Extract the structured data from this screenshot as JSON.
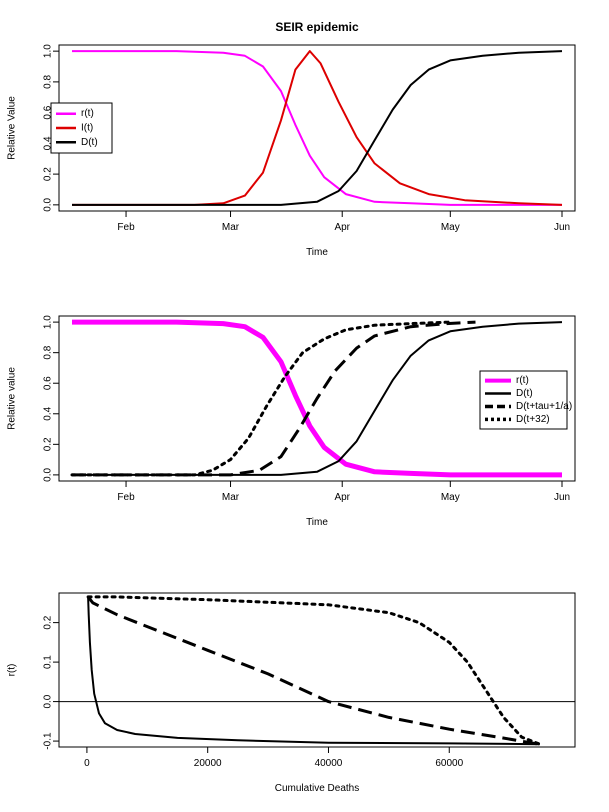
{
  "figure": {
    "title": "SEIR epidemic"
  },
  "chart_data": [
    {
      "type": "line",
      "title": "SEIR epidemic",
      "xlabel": "Time",
      "ylabel": "Relative Value",
      "x_ticks": [
        "Feb",
        "Mar",
        "Apr",
        "May",
        "Jun"
      ],
      "y_ticks": [
        "0.0",
        "0.2",
        "0.4",
        "0.6",
        "0.8",
        "1.0"
      ],
      "ylim": [
        0,
        1
      ],
      "grid": false,
      "legend": "left",
      "x_unit": "date",
      "xlim": [
        "2020-01-17",
        "2020-06-01"
      ],
      "series": [
        {
          "name": "r(t)",
          "color": "#ff00ff",
          "style": "solid",
          "x": [
            "2020-01-17",
            "2020-02-15",
            "2020-02-28",
            "2020-03-05",
            "2020-03-10",
            "2020-03-15",
            "2020-03-19",
            "2020-03-23",
            "2020-03-27",
            "2020-04-02",
            "2020-04-10",
            "2020-04-20",
            "2020-05-01",
            "2020-06-01"
          ],
          "y": [
            1.0,
            1.0,
            0.99,
            0.97,
            0.9,
            0.74,
            0.52,
            0.32,
            0.18,
            0.07,
            0.02,
            0.01,
            0.0,
            0.0
          ]
        },
        {
          "name": "I(t)",
          "color": "#dd0000",
          "style": "solid",
          "x": [
            "2020-01-17",
            "2020-02-20",
            "2020-02-28",
            "2020-03-05",
            "2020-03-10",
            "2020-03-15",
            "2020-03-19",
            "2020-03-23",
            "2020-03-26",
            "2020-03-31",
            "2020-04-05",
            "2020-04-10",
            "2020-04-17",
            "2020-04-25",
            "2020-05-05",
            "2020-05-20",
            "2020-06-01"
          ],
          "y": [
            0.0,
            0.0,
            0.01,
            0.06,
            0.21,
            0.55,
            0.88,
            1.0,
            0.92,
            0.67,
            0.44,
            0.27,
            0.14,
            0.07,
            0.03,
            0.01,
            0.0
          ]
        },
        {
          "name": "D(t)",
          "color": "#000000",
          "style": "solid",
          "x": [
            "2020-01-17",
            "2020-03-15",
            "2020-03-25",
            "2020-03-31",
            "2020-04-05",
            "2020-04-10",
            "2020-04-15",
            "2020-04-20",
            "2020-04-25",
            "2020-05-01",
            "2020-05-10",
            "2020-05-20",
            "2020-06-01"
          ],
          "y": [
            0.0,
            0.0,
            0.02,
            0.09,
            0.22,
            0.42,
            0.62,
            0.78,
            0.88,
            0.94,
            0.97,
            0.99,
            1.0
          ]
        }
      ]
    },
    {
      "type": "line",
      "xlabel": "Time",
      "ylabel": "Relative value",
      "x_ticks": [
        "Feb",
        "Mar",
        "Apr",
        "May",
        "Jun"
      ],
      "y_ticks": [
        "0.0",
        "0.2",
        "0.4",
        "0.6",
        "0.8",
        "1.0"
      ],
      "ylim": [
        0,
        1
      ],
      "grid": false,
      "legend": "right",
      "x_unit": "date",
      "xlim": [
        "2020-01-17",
        "2020-06-01"
      ],
      "series": [
        {
          "name": "r(t)",
          "color": "#ff00ff",
          "style": "thick",
          "x": [
            "2020-01-17",
            "2020-02-15",
            "2020-02-28",
            "2020-03-05",
            "2020-03-10",
            "2020-03-15",
            "2020-03-19",
            "2020-03-23",
            "2020-03-27",
            "2020-04-02",
            "2020-04-10",
            "2020-04-20",
            "2020-05-01",
            "2020-06-01"
          ],
          "y": [
            1.0,
            1.0,
            0.99,
            0.97,
            0.9,
            0.74,
            0.52,
            0.32,
            0.18,
            0.07,
            0.02,
            0.01,
            0.0,
            0.0
          ]
        },
        {
          "name": "D(t)",
          "color": "#000000",
          "style": "solid",
          "x": [
            "2020-01-17",
            "2020-03-15",
            "2020-03-25",
            "2020-03-31",
            "2020-04-05",
            "2020-04-10",
            "2020-04-15",
            "2020-04-20",
            "2020-04-25",
            "2020-05-01",
            "2020-05-10",
            "2020-05-20",
            "2020-06-01"
          ],
          "y": [
            0.0,
            0.0,
            0.02,
            0.09,
            0.22,
            0.42,
            0.62,
            0.78,
            0.88,
            0.94,
            0.97,
            0.99,
            1.0
          ]
        },
        {
          "name": "D(t+tau+1/a)",
          "color": "#000000",
          "style": "dashed",
          "x": [
            "2020-01-17",
            "2020-03-01",
            "2020-03-09",
            "2020-03-15",
            "2020-03-20",
            "2020-03-25",
            "2020-03-30",
            "2020-04-05",
            "2020-04-10",
            "2020-04-20",
            "2020-04-30",
            "2020-05-08"
          ],
          "y": [
            0.0,
            0.0,
            0.03,
            0.12,
            0.3,
            0.5,
            0.68,
            0.83,
            0.91,
            0.97,
            0.99,
            1.0
          ]
        },
        {
          "name": "D(t+32)",
          "color": "#000000",
          "style": "dotted",
          "x": [
            "2020-01-17",
            "2020-02-20",
            "2020-02-25",
            "2020-03-01",
            "2020-03-06",
            "2020-03-11",
            "2020-03-16",
            "2020-03-21",
            "2020-03-27",
            "2020-04-02",
            "2020-04-10",
            "2020-04-20",
            "2020-05-01"
          ],
          "y": [
            0.0,
            0.0,
            0.03,
            0.1,
            0.24,
            0.45,
            0.64,
            0.8,
            0.89,
            0.95,
            0.98,
            0.99,
            1.0
          ]
        }
      ]
    },
    {
      "type": "line",
      "xlabel": "Cumulative Deaths",
      "ylabel": "r(t)",
      "x_ticks": [
        "0",
        "20000",
        "40000",
        "60000"
      ],
      "y_ticks": [
        "-0.1",
        "0.0",
        "0.1",
        "0.2"
      ],
      "xlim": [
        -2800,
        79000
      ],
      "ylim": [
        -0.115,
        0.275
      ],
      "hline": 0,
      "grid": false,
      "series": [
        {
          "color": "#000000",
          "style": "solid",
          "x": [
            200,
            300,
            500,
            800,
            1200,
            2000,
            3000,
            5000,
            8000,
            15000,
            25000,
            40000,
            60000,
            75000
          ],
          "y": [
            0.265,
            0.22,
            0.15,
            0.08,
            0.02,
            -0.03,
            -0.055,
            -0.072,
            -0.082,
            -0.092,
            -0.098,
            -0.104,
            -0.106,
            -0.108
          ]
        },
        {
          "color": "#000000",
          "style": "dashed",
          "x": [
            200,
            1000,
            5000,
            10000,
            20000,
            30000,
            40000,
            50000,
            60000,
            70000,
            74000,
            75000
          ],
          "y": [
            0.265,
            0.25,
            0.22,
            0.19,
            0.13,
            0.07,
            0.0,
            -0.04,
            -0.07,
            -0.095,
            -0.106,
            -0.108
          ]
        },
        {
          "color": "#000000",
          "style": "dotted",
          "x": [
            200,
            5000,
            20000,
            40000,
            50000,
            55000,
            60000,
            63000,
            66000,
            69000,
            72000,
            75000
          ],
          "y": [
            0.265,
            0.265,
            0.258,
            0.245,
            0.225,
            0.2,
            0.15,
            0.1,
            0.03,
            -0.04,
            -0.09,
            -0.108
          ]
        }
      ]
    }
  ]
}
